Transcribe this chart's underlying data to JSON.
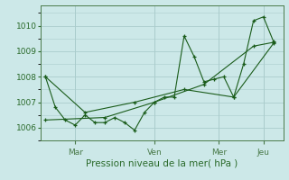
{
  "background_color": "#cce8e8",
  "grid_color": "#aacccc",
  "line_color": "#1a5c1a",
  "text_color": "#2a6a2a",
  "axis_color": "#4a7a4a",
  "xlabel": "Pression niveau de la mer( hPa )",
  "yticks": [
    1006,
    1007,
    1008,
    1009,
    1010
  ],
  "ylim": [
    1005.5,
    1010.8
  ],
  "xtick_labels": [
    "Mar",
    "Ven",
    "Mer",
    "Jeu"
  ],
  "series1_x": [
    0,
    1,
    2,
    3,
    4,
    5,
    6,
    7,
    8,
    9,
    10,
    11,
    12,
    13,
    14,
    15,
    16,
    17,
    18,
    19,
    20,
    21,
    22,
    23
  ],
  "series1_y": [
    1008.0,
    1006.8,
    1006.3,
    1006.1,
    1006.5,
    1006.2,
    1006.2,
    1006.4,
    1006.2,
    1005.9,
    1006.6,
    1007.0,
    1007.2,
    1007.2,
    1009.6,
    1008.8,
    1007.8,
    1007.9,
    1008.0,
    1007.2,
    1008.5,
    1010.2,
    1010.35,
    1009.4
  ],
  "series2_x": [
    0,
    4,
    9,
    14,
    19,
    23
  ],
  "series2_y": [
    1008.0,
    1006.6,
    1007.0,
    1007.5,
    1007.2,
    1009.3
  ],
  "series3_x": [
    0,
    6,
    11,
    16,
    21,
    23
  ],
  "series3_y": [
    1006.3,
    1006.4,
    1007.0,
    1007.7,
    1009.2,
    1009.35
  ],
  "xtick_x": [
    3.0,
    11.0,
    17.5,
    22.0
  ],
  "xlim": [
    -0.5,
    24.0
  ]
}
